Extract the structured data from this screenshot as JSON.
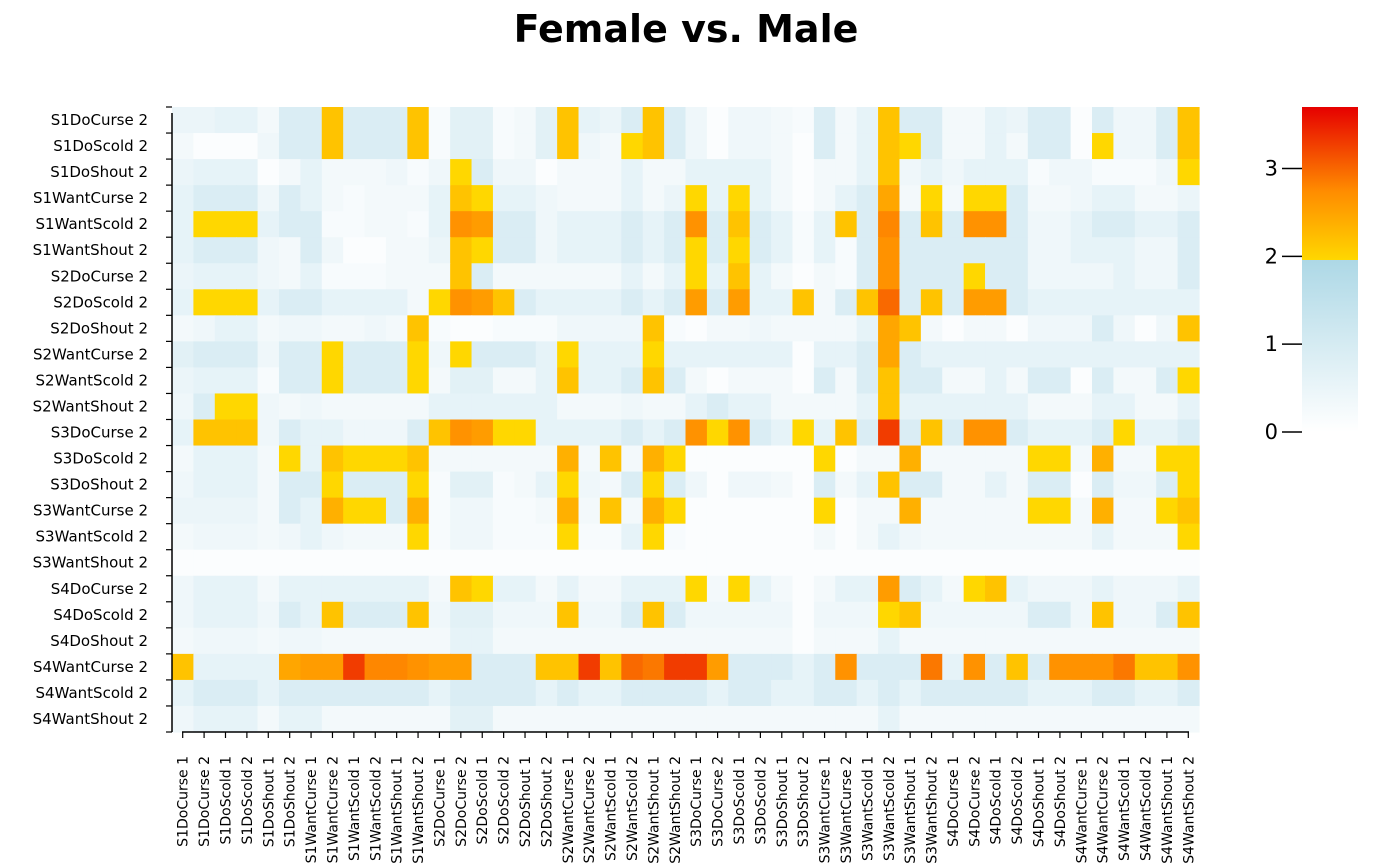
{
  "chart_data": {
    "type": "heatmap",
    "title": "Female vs. Male",
    "y_labels": [
      "S1DoCurse 2",
      "S1DoScold 2",
      "S1DoShout 2",
      "S1WantCurse 2",
      "S1WantScold 2",
      "S1WantShout 2",
      "S2DoCurse 2",
      "S2DoScold 2",
      "S2DoShout 2",
      "S2WantCurse 2",
      "S2WantScold 2",
      "S2WantShout 2",
      "S3DoCurse 2",
      "S3DoScold 2",
      "S3DoShout 2",
      "S3WantCurse 2",
      "S3WantScold 2",
      "S3WantShout 2",
      "S4DoCurse 2",
      "S4DoScold 2",
      "S4DoShout 2",
      "S4WantCurse 2",
      "S4WantScold 2",
      "S4WantShout 2"
    ],
    "x_labels": [
      "S1DoCurse 1",
      "S1DoCurse 2",
      "S1DoScold 1",
      "S1DoScold 2",
      "S1DoShout 1",
      "S1DoShout 2",
      "S1WantCurse 1",
      "S1WantCurse 2",
      "S1WantScold 1",
      "S1WantScold 2",
      "S1WantShout 1",
      "S1WantShout 2",
      "S2DoCurse 1",
      "S2DoCurse 2",
      "S2DoScold 1",
      "S2DoScold 2",
      "S2DoShout 1",
      "S2DoShout 2",
      "S2WantCurse 1",
      "S2WantCurse 2",
      "S2WantScold 1",
      "S2WantScold 2",
      "S2WantShout 1",
      "S2WantShout 2",
      "S3DoCurse 1",
      "S3DoCurse 2",
      "S3DoScold 1",
      "S3DoScold 2",
      "S3DoShout 1",
      "S3DoShout 2",
      "S3WantCurse 1",
      "S3WantCurse 2",
      "S3WantScold 1",
      "S3WantScold 2",
      "S3WantShout 1",
      "S3WantShout 2",
      "S4DoCurse 1",
      "S4DoCurse 2",
      "S4DoScold 1",
      "S4DoScold 2",
      "S4DoShout 1",
      "S4DoShout 2",
      "S4WantCurse 1",
      "S4WantCurse 2",
      "S4WantScold 1",
      "S4WantScold 2",
      "S4WantShout 1",
      "S4WantShout 2"
    ],
    "color_scale": {
      "ticks": [
        0,
        1,
        2,
        3
      ],
      "range": [
        0,
        3.7
      ],
      "low_colors": [
        "#ffffff",
        "#add8e6"
      ],
      "high_colors": [
        "#ffd700",
        "#ff8c00",
        "#e60000"
      ],
      "break": 2
    },
    "values": [
      [
        0.5,
        0.5,
        0.6,
        0.6,
        0.3,
        0.9,
        0.9,
        2.2,
        0.9,
        0.9,
        0.9,
        2.2,
        0.2,
        0.7,
        0.7,
        0.2,
        0.3,
        0.7,
        2.2,
        0.6,
        0.5,
        0.9,
        2.2,
        0.9,
        0.4,
        0.1,
        0.4,
        0.4,
        0.3,
        0.2,
        0.9,
        0.3,
        0.6,
        2.2,
        0.9,
        0.9,
        0.3,
        0.3,
        0.6,
        0.5,
        0.9,
        0.9,
        0.1,
        0.9,
        0.4,
        0.4,
        0.9,
        2.2
      ],
      [
        0.3,
        0.1,
        0.1,
        0.1,
        0.4,
        0.9,
        0.9,
        2.2,
        0.9,
        0.9,
        0.9,
        2.2,
        0.2,
        0.7,
        0.7,
        0.2,
        0.3,
        0.7,
        2.2,
        0.4,
        0.3,
        2.0,
        2.2,
        0.9,
        0.4,
        0.1,
        0.4,
        0.4,
        0.3,
        0.1,
        0.9,
        0.3,
        0.6,
        2.2,
        2.0,
        0.9,
        0.3,
        0.3,
        0.6,
        0.3,
        0.9,
        0.9,
        0.1,
        2.0,
        0.4,
        0.4,
        0.9,
        2.2
      ],
      [
        0.5,
        0.6,
        0.6,
        0.6,
        0.1,
        0.3,
        0.6,
        0.3,
        0.3,
        0.3,
        0.4,
        0.2,
        0.4,
        2.0,
        0.9,
        0.4,
        0.4,
        0.1,
        0.3,
        0.3,
        0.3,
        0.6,
        0.3,
        0.3,
        0.6,
        0.6,
        0.6,
        0.6,
        0.3,
        0.1,
        0.3,
        0.3,
        0.6,
        2.2,
        0.4,
        0.6,
        0.4,
        0.6,
        0.6,
        0.6,
        0.2,
        0.4,
        0.4,
        0.2,
        0.2,
        0.2,
        0.4,
        2.0
      ],
      [
        0.6,
        0.9,
        0.9,
        0.9,
        0.4,
        0.9,
        0.6,
        0.3,
        0.2,
        0.3,
        0.3,
        0.3,
        0.6,
        2.2,
        2.0,
        0.6,
        0.6,
        0.4,
        0.3,
        0.3,
        0.3,
        0.6,
        0.3,
        0.5,
        2.0,
        0.6,
        2.0,
        0.6,
        0.3,
        0.1,
        0.3,
        0.6,
        0.9,
        2.5,
        0.3,
        2.0,
        0.3,
        2.0,
        2.0,
        0.9,
        0.3,
        0.3,
        0.4,
        0.6,
        0.6,
        0.3,
        0.3,
        0.5
      ],
      [
        0.6,
        2.0,
        2.0,
        2.0,
        0.6,
        0.9,
        0.9,
        0.2,
        0.2,
        0.3,
        0.3,
        0.2,
        0.6,
        2.7,
        2.6,
        0.9,
        0.9,
        0.4,
        0.6,
        0.6,
        0.6,
        0.9,
        0.6,
        0.9,
        2.7,
        0.9,
        2.2,
        0.9,
        0.6,
        0.2,
        0.6,
        2.2,
        0.9,
        2.8,
        0.9,
        2.2,
        0.9,
        2.7,
        2.7,
        0.9,
        0.4,
        0.4,
        0.6,
        0.9,
        0.9,
        0.6,
        0.6,
        0.9
      ],
      [
        0.6,
        0.9,
        0.9,
        0.9,
        0.4,
        0.3,
        0.9,
        0.4,
        0.1,
        0.1,
        0.3,
        0.3,
        0.5,
        2.2,
        2.0,
        0.9,
        0.9,
        0.4,
        0.6,
        0.6,
        0.6,
        0.9,
        0.6,
        0.9,
        2.0,
        0.9,
        2.0,
        0.9,
        0.6,
        0.2,
        0.6,
        0.2,
        0.9,
        2.7,
        0.9,
        0.9,
        0.9,
        0.9,
        0.9,
        0.9,
        0.4,
        0.4,
        0.6,
        0.6,
        0.6,
        0.4,
        0.4,
        0.9
      ],
      [
        0.5,
        0.6,
        0.6,
        0.6,
        0.4,
        0.3,
        0.6,
        0.2,
        0.2,
        0.2,
        0.3,
        0.3,
        0.3,
        2.2,
        0.9,
        0.3,
        0.3,
        0.3,
        0.3,
        0.3,
        0.3,
        0.6,
        0.3,
        0.6,
        2.0,
        0.6,
        2.2,
        0.6,
        0.3,
        0.1,
        0.3,
        0.2,
        0.9,
        2.7,
        0.9,
        0.9,
        0.9,
        2.0,
        0.9,
        0.9,
        0.4,
        0.4,
        0.4,
        0.4,
        0.6,
        0.4,
        0.4,
        0.9
      ],
      [
        0.6,
        2.0,
        2.0,
        2.0,
        0.6,
        0.9,
        0.9,
        0.6,
        0.6,
        0.6,
        0.6,
        0.3,
        2.0,
        2.7,
        2.6,
        2.2,
        0.9,
        0.6,
        0.6,
        0.6,
        0.6,
        0.9,
        0.6,
        0.9,
        2.6,
        0.9,
        2.6,
        0.6,
        0.6,
        2.2,
        0.3,
        0.9,
        2.2,
        3.0,
        0.9,
        2.2,
        0.9,
        2.6,
        2.6,
        0.9,
        0.6,
        0.6,
        0.6,
        0.6,
        0.6,
        0.6,
        0.6,
        0.6
      ],
      [
        0.3,
        0.4,
        0.6,
        0.6,
        0.3,
        0.4,
        0.4,
        0.3,
        0.3,
        0.4,
        0.3,
        2.2,
        0.2,
        0.1,
        0.1,
        0.2,
        0.2,
        0.2,
        0.4,
        0.4,
        0.4,
        0.4,
        2.2,
        0.2,
        0.1,
        0.3,
        0.3,
        0.4,
        0.3,
        0.3,
        0.3,
        0.3,
        0.6,
        2.5,
        2.2,
        0.3,
        0.1,
        0.3,
        0.3,
        0.1,
        0.4,
        0.4,
        0.4,
        0.9,
        0.4,
        0.1,
        0.4,
        2.2
      ],
      [
        0.7,
        0.9,
        0.9,
        0.9,
        0.4,
        0.9,
        0.9,
        2.0,
        0.9,
        0.9,
        0.9,
        2.0,
        0.4,
        2.0,
        0.9,
        0.9,
        0.9,
        0.6,
        2.0,
        0.6,
        0.6,
        0.6,
        2.0,
        0.6,
        0.6,
        0.6,
        0.6,
        0.6,
        0.6,
        0.1,
        0.6,
        0.6,
        0.9,
        2.5,
        0.9,
        0.6,
        0.6,
        0.6,
        0.6,
        0.6,
        0.6,
        0.6,
        0.6,
        0.6,
        0.6,
        0.6,
        0.6,
        0.6
      ],
      [
        0.5,
        0.6,
        0.6,
        0.6,
        0.2,
        0.9,
        0.9,
        2.0,
        0.9,
        0.9,
        0.9,
        2.0,
        0.3,
        0.7,
        0.7,
        0.3,
        0.3,
        0.6,
        2.2,
        0.6,
        0.6,
        0.9,
        2.2,
        0.9,
        0.3,
        0.1,
        0.3,
        0.3,
        0.3,
        0.1,
        0.9,
        0.3,
        0.9,
        2.2,
        0.9,
        0.9,
        0.3,
        0.3,
        0.6,
        0.3,
        0.9,
        0.9,
        0.1,
        0.9,
        0.3,
        0.3,
        0.9,
        2.0
      ],
      [
        0.4,
        0.9,
        2.0,
        2.0,
        0.4,
        0.3,
        0.4,
        0.3,
        0.3,
        0.3,
        0.3,
        0.3,
        0.6,
        0.6,
        0.6,
        0.6,
        0.6,
        0.6,
        0.3,
        0.3,
        0.3,
        0.4,
        0.3,
        0.3,
        0.6,
        0.9,
        0.6,
        0.6,
        0.3,
        0.3,
        0.3,
        0.3,
        0.6,
        2.2,
        0.6,
        0.6,
        0.6,
        0.6,
        0.6,
        0.6,
        0.3,
        0.3,
        0.3,
        0.6,
        0.6,
        0.3,
        0.3,
        0.6
      ],
      [
        0.6,
        2.2,
        2.2,
        2.2,
        0.4,
        0.9,
        0.6,
        0.6,
        0.4,
        0.4,
        0.4,
        0.9,
        2.2,
        2.7,
        2.6,
        2.0,
        2.0,
        0.6,
        0.6,
        0.6,
        0.6,
        0.9,
        0.6,
        0.9,
        2.7,
        2.0,
        2.7,
        0.9,
        0.6,
        2.0,
        0.6,
        2.2,
        0.9,
        3.3,
        0.9,
        2.2,
        0.9,
        2.7,
        2.7,
        0.9,
        0.6,
        0.6,
        0.6,
        0.9,
        2.0,
        0.6,
        0.6,
        0.9
      ],
      [
        0.3,
        0.6,
        0.6,
        0.6,
        0.3,
        2.0,
        0.6,
        2.2,
        2.0,
        2.0,
        2.0,
        2.2,
        0.3,
        0.3,
        0.3,
        0.3,
        0.3,
        0.3,
        2.4,
        0.3,
        2.2,
        0.3,
        2.4,
        2.0,
        0.1,
        0.1,
        0.1,
        0.1,
        0.1,
        0.1,
        2.0,
        0.1,
        0.3,
        0.3,
        2.4,
        0.3,
        0.3,
        0.3,
        0.3,
        0.3,
        2.0,
        2.0,
        0.3,
        2.4,
        0.3,
        0.3,
        2.0,
        2.0
      ],
      [
        0.4,
        0.6,
        0.6,
        0.6,
        0.3,
        0.9,
        0.9,
        2.0,
        0.9,
        0.9,
        0.9,
        2.0,
        0.2,
        0.7,
        0.7,
        0.2,
        0.3,
        0.6,
        2.0,
        0.4,
        0.3,
        0.9,
        2.0,
        0.9,
        0.4,
        0.1,
        0.4,
        0.4,
        0.3,
        0.1,
        0.9,
        0.3,
        0.6,
        2.2,
        0.9,
        0.9,
        0.3,
        0.3,
        0.6,
        0.3,
        0.9,
        0.9,
        0.1,
        0.9,
        0.4,
        0.4,
        0.9,
        2.0
      ],
      [
        0.5,
        0.5,
        0.5,
        0.5,
        0.3,
        0.9,
        0.6,
        2.4,
        2.0,
        2.0,
        0.9,
        2.4,
        0.2,
        0.4,
        0.4,
        0.2,
        0.2,
        0.3,
        2.4,
        0.3,
        2.2,
        0.3,
        2.4,
        2.0,
        0.1,
        0.1,
        0.1,
        0.1,
        0.1,
        0.1,
        2.0,
        0.1,
        0.3,
        0.3,
        2.4,
        0.3,
        0.3,
        0.3,
        0.3,
        0.3,
        2.0,
        2.0,
        0.3,
        2.4,
        0.3,
        0.3,
        2.0,
        2.2
      ],
      [
        0.3,
        0.4,
        0.4,
        0.4,
        0.3,
        0.4,
        0.6,
        0.4,
        0.3,
        0.3,
        0.3,
        2.0,
        0.2,
        0.4,
        0.4,
        0.2,
        0.2,
        0.2,
        2.0,
        0.2,
        0.2,
        0.6,
        2.0,
        0.2,
        0.1,
        0.1,
        0.1,
        0.1,
        0.1,
        0.1,
        0.3,
        0.1,
        0.3,
        0.6,
        0.4,
        0.3,
        0.3,
        0.3,
        0.3,
        0.3,
        0.3,
        0.3,
        0.3,
        0.6,
        0.3,
        0.3,
        0.3,
        2.0
      ],
      [
        0.1,
        0.1,
        0.1,
        0.1,
        0.1,
        0.1,
        0.1,
        0.1,
        0.1,
        0.1,
        0.1,
        0.1,
        0.1,
        0.1,
        0.1,
        0.1,
        0.1,
        0.1,
        0.1,
        0.1,
        0.1,
        0.1,
        0.1,
        0.1,
        0.1,
        0.1,
        0.1,
        0.1,
        0.1,
        0.1,
        0.1,
        0.1,
        0.1,
        0.1,
        0.1,
        0.1,
        0.1,
        0.1,
        0.1,
        0.1,
        0.1,
        0.1,
        0.1,
        0.1,
        0.1,
        0.1,
        0.1,
        0.1
      ],
      [
        0.4,
        0.6,
        0.6,
        0.6,
        0.3,
        0.6,
        0.6,
        0.6,
        0.6,
        0.6,
        0.6,
        0.6,
        0.3,
        2.2,
        2.0,
        0.6,
        0.6,
        0.3,
        0.6,
        0.3,
        0.3,
        0.6,
        0.6,
        0.6,
        2.0,
        0.3,
        2.0,
        0.6,
        0.3,
        0.1,
        0.3,
        0.6,
        0.6,
        2.6,
        0.9,
        0.6,
        0.3,
        2.0,
        2.2,
        0.6,
        0.4,
        0.4,
        0.4,
        0.6,
        0.4,
        0.4,
        0.4,
        0.6
      ],
      [
        0.4,
        0.6,
        0.6,
        0.6,
        0.4,
        0.9,
        0.6,
        2.2,
        0.9,
        0.9,
        0.9,
        2.2,
        0.4,
        0.7,
        0.7,
        0.4,
        0.4,
        0.4,
        2.2,
        0.4,
        0.4,
        0.9,
        2.2,
        0.9,
        0.4,
        0.4,
        0.4,
        0.4,
        0.4,
        0.1,
        0.4,
        0.4,
        0.4,
        2.0,
        2.2,
        0.4,
        0.4,
        0.4,
        0.4,
        0.4,
        0.9,
        0.9,
        0.4,
        2.2,
        0.4,
        0.4,
        0.9,
        2.2
      ],
      [
        0.3,
        0.4,
        0.4,
        0.4,
        0.3,
        0.4,
        0.4,
        0.3,
        0.3,
        0.3,
        0.3,
        0.3,
        0.3,
        0.6,
        0.6,
        0.3,
        0.3,
        0.3,
        0.3,
        0.3,
        0.3,
        0.3,
        0.3,
        0.3,
        0.3,
        0.3,
        0.3,
        0.3,
        0.3,
        0.1,
        0.3,
        0.3,
        0.3,
        0.6,
        0.3,
        0.3,
        0.3,
        0.3,
        0.3,
        0.3,
        0.3,
        0.3,
        0.3,
        0.3,
        0.3,
        0.3,
        0.3,
        0.3
      ],
      [
        2.2,
        0.6,
        0.6,
        0.6,
        0.6,
        2.5,
        2.6,
        2.6,
        3.3,
        2.8,
        2.8,
        2.7,
        2.6,
        2.6,
        0.9,
        0.9,
        0.9,
        2.2,
        2.2,
        3.3,
        2.2,
        3.0,
        2.9,
        3.3,
        3.3,
        2.6,
        0.9,
        0.9,
        0.9,
        0.6,
        0.9,
        2.7,
        0.9,
        0.9,
        0.9,
        2.9,
        0.6,
        2.7,
        0.9,
        2.2,
        0.9,
        2.7,
        2.7,
        2.7,
        2.9,
        2.2,
        2.2,
        2.7
      ],
      [
        0.6,
        0.9,
        0.9,
        0.9,
        0.6,
        0.9,
        0.9,
        0.9,
        0.9,
        0.9,
        0.9,
        0.9,
        0.6,
        0.9,
        0.9,
        0.9,
        0.9,
        0.6,
        0.9,
        0.6,
        0.6,
        0.9,
        0.9,
        0.9,
        0.9,
        0.6,
        0.9,
        0.9,
        0.6,
        0.6,
        0.9,
        0.9,
        0.6,
        0.9,
        0.6,
        0.9,
        0.9,
        0.9,
        0.9,
        0.9,
        0.6,
        0.6,
        0.6,
        0.9,
        0.9,
        0.6,
        0.6,
        0.9
      ],
      [
        0.4,
        0.6,
        0.6,
        0.6,
        0.3,
        0.6,
        0.6,
        0.3,
        0.3,
        0.3,
        0.3,
        0.3,
        0.3,
        0.7,
        0.7,
        0.3,
        0.3,
        0.3,
        0.3,
        0.3,
        0.3,
        0.3,
        0.3,
        0.3,
        0.3,
        0.3,
        0.3,
        0.3,
        0.3,
        0.3,
        0.3,
        0.3,
        0.3,
        0.6,
        0.3,
        0.3,
        0.3,
        0.3,
        0.3,
        0.3,
        0.3,
        0.3,
        0.3,
        0.3,
        0.3,
        0.3,
        0.3,
        0.3
      ]
    ]
  }
}
